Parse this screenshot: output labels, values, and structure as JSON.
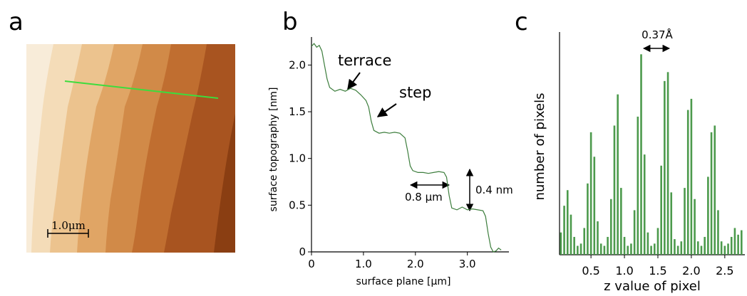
{
  "chart_data": [
    {
      "type": "image",
      "panel": "a",
      "scale_bar": "1.0μm",
      "line_color": "#3ddc3d"
    },
    {
      "type": "line",
      "panel": "b",
      "xlabel": "surface plane [μm]",
      "ylabel": "surface topography [nm]",
      "annotations": [
        "terrace",
        "step",
        "0.8 μm",
        "0.4 nm"
      ],
      "color": "#3c7d3c",
      "xlim": [
        0,
        3.8
      ],
      "ylim": [
        0,
        2.3
      ],
      "xticks": [
        0,
        {
          "value": 1,
          "label": "1.0"
        },
        {
          "value": 2,
          "label": "2.0"
        },
        {
          "value": 3,
          "label": "3.0"
        }
      ],
      "yticks": [
        0,
        0.5,
        {
          "value": 1,
          "label": "1.0"
        },
        1.5,
        {
          "value": 2,
          "label": "2.0"
        }
      ],
      "x": [
        0.0,
        0.05,
        0.1,
        0.15,
        0.2,
        0.25,
        0.3,
        0.35,
        0.45,
        0.55,
        0.65,
        0.75,
        0.85,
        0.95,
        1.05,
        1.1,
        1.15,
        1.2,
        1.3,
        1.4,
        1.5,
        1.6,
        1.7,
        1.8,
        1.85,
        1.9,
        1.95,
        2.05,
        2.15,
        2.25,
        2.35,
        2.45,
        2.55,
        2.6,
        2.65,
        2.7,
        2.8,
        2.9,
        3.0,
        3.1,
        3.2,
        3.3,
        3.35,
        3.4,
        3.45,
        3.5,
        3.55,
        3.6,
        3.65
      ],
      "values": [
        2.2,
        2.23,
        2.19,
        2.21,
        2.15,
        2.0,
        1.85,
        1.76,
        1.72,
        1.74,
        1.72,
        1.75,
        1.73,
        1.68,
        1.62,
        1.55,
        1.4,
        1.3,
        1.27,
        1.28,
        1.27,
        1.28,
        1.27,
        1.22,
        1.08,
        0.92,
        0.87,
        0.85,
        0.85,
        0.84,
        0.85,
        0.86,
        0.85,
        0.8,
        0.6,
        0.47,
        0.45,
        0.48,
        0.45,
        0.46,
        0.45,
        0.44,
        0.38,
        0.2,
        0.05,
        0.0,
        0.01,
        0.04,
        0.02
      ]
    },
    {
      "type": "bar",
      "panel": "c",
      "xlabel": "z value of pixel",
      "ylabel": "number of pixels",
      "annotations": [
        "0.37Å"
      ],
      "color": "#4c9a4c",
      "xlim": [
        0.03,
        2.8
      ],
      "ylim": [
        0,
        100
      ],
      "xticks": [
        0.5,
        {
          "value": 1,
          "label": "1.0"
        },
        1.5,
        {
          "value": 2,
          "label": "2.0"
        },
        2.5
      ],
      "x": [
        0.05,
        0.1,
        0.15,
        0.2,
        0.25,
        0.3,
        0.35,
        0.4,
        0.45,
        0.5,
        0.55,
        0.6,
        0.65,
        0.7,
        0.75,
        0.8,
        0.85,
        0.9,
        0.95,
        1.0,
        1.05,
        1.1,
        1.15,
        1.2,
        1.25,
        1.3,
        1.35,
        1.4,
        1.45,
        1.5,
        1.55,
        1.6,
        1.65,
        1.7,
        1.75,
        1.8,
        1.85,
        1.9,
        1.95,
        2.0,
        2.05,
        2.1,
        2.15,
        2.2,
        2.25,
        2.3,
        2.35,
        2.4,
        2.45,
        2.5,
        2.55,
        2.6,
        2.65,
        2.7,
        2.75
      ],
      "values": [
        10,
        22,
        29,
        18,
        8,
        4,
        5,
        12,
        32,
        55,
        44,
        15,
        5,
        4,
        8,
        25,
        58,
        72,
        30,
        8,
        4,
        5,
        20,
        62,
        90,
        45,
        10,
        4,
        5,
        12,
        40,
        78,
        82,
        28,
        7,
        4,
        6,
        30,
        65,
        70,
        25,
        6,
        4,
        8,
        35,
        55,
        58,
        20,
        6,
        4,
        5,
        8,
        12,
        9,
        11
      ]
    }
  ]
}
